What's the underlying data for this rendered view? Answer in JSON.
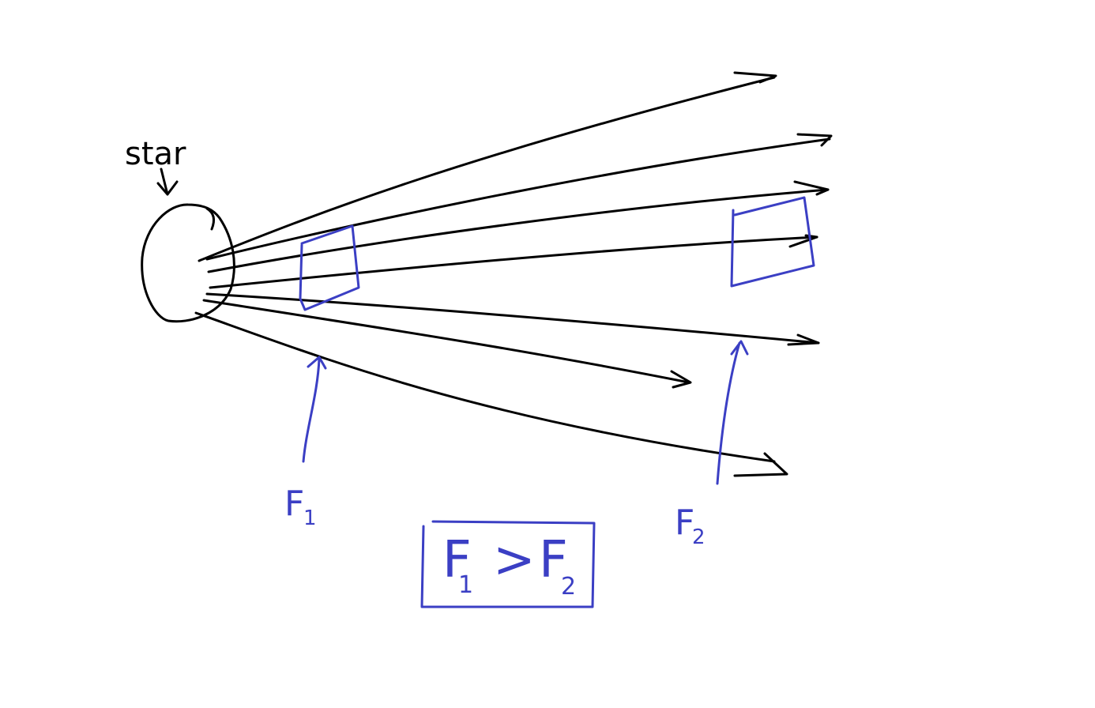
{
  "colors": {
    "ink": "#000000",
    "annotation": "#3b3fc4",
    "background": "#ffffff"
  },
  "labels": {
    "star": "star",
    "flux_near_letter": "F",
    "flux_near_subscript": "1",
    "flux_far_letter": "F",
    "flux_far_subscript": "2",
    "comparison_left_letter": "F",
    "comparison_left_subscript": "1",
    "comparison_operator": ">",
    "comparison_right_letter": "F",
    "comparison_right_subscript": "2"
  }
}
